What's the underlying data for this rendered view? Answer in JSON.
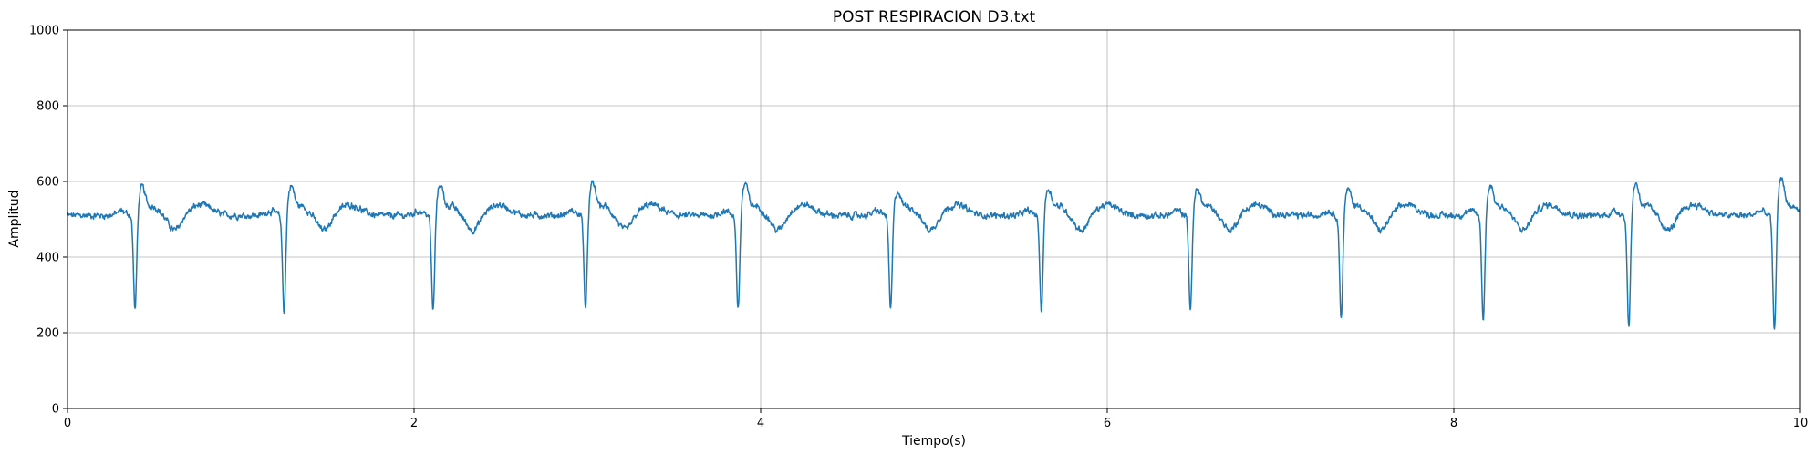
{
  "chart_data": {
    "type": "line",
    "title": "POST RESPIRACION D3.txt",
    "xlabel": "Tiempo(s)",
    "ylabel": "Amplitud",
    "xlim": [
      0,
      10
    ],
    "ylim": [
      0,
      1000
    ],
    "xticks": [
      0,
      2,
      4,
      6,
      8,
      10
    ],
    "yticks": [
      0,
      200,
      400,
      600,
      800,
      1000
    ],
    "grid": true,
    "legend": false,
    "series": [
      {
        "color": "#1f77b4",
        "baseline": 510,
        "beats": [
          {
            "t": 0.39,
            "min": 255,
            "peak": 605
          },
          {
            "t": 1.25,
            "min": 248,
            "peak": 608
          },
          {
            "t": 2.11,
            "min": 252,
            "peak": 612
          },
          {
            "t": 2.99,
            "min": 253,
            "peak": 614
          },
          {
            "t": 3.87,
            "min": 253,
            "peak": 612
          },
          {
            "t": 4.75,
            "min": 256,
            "peak": 592
          },
          {
            "t": 5.62,
            "min": 250,
            "peak": 600
          },
          {
            "t": 6.48,
            "min": 258,
            "peak": 600
          },
          {
            "t": 7.35,
            "min": 235,
            "peak": 598
          },
          {
            "t": 8.17,
            "min": 227,
            "peak": 610
          },
          {
            "t": 9.01,
            "min": 208,
            "peak": 615
          },
          {
            "t": 9.85,
            "min": 195,
            "peak": 628
          }
        ]
      }
    ]
  }
}
